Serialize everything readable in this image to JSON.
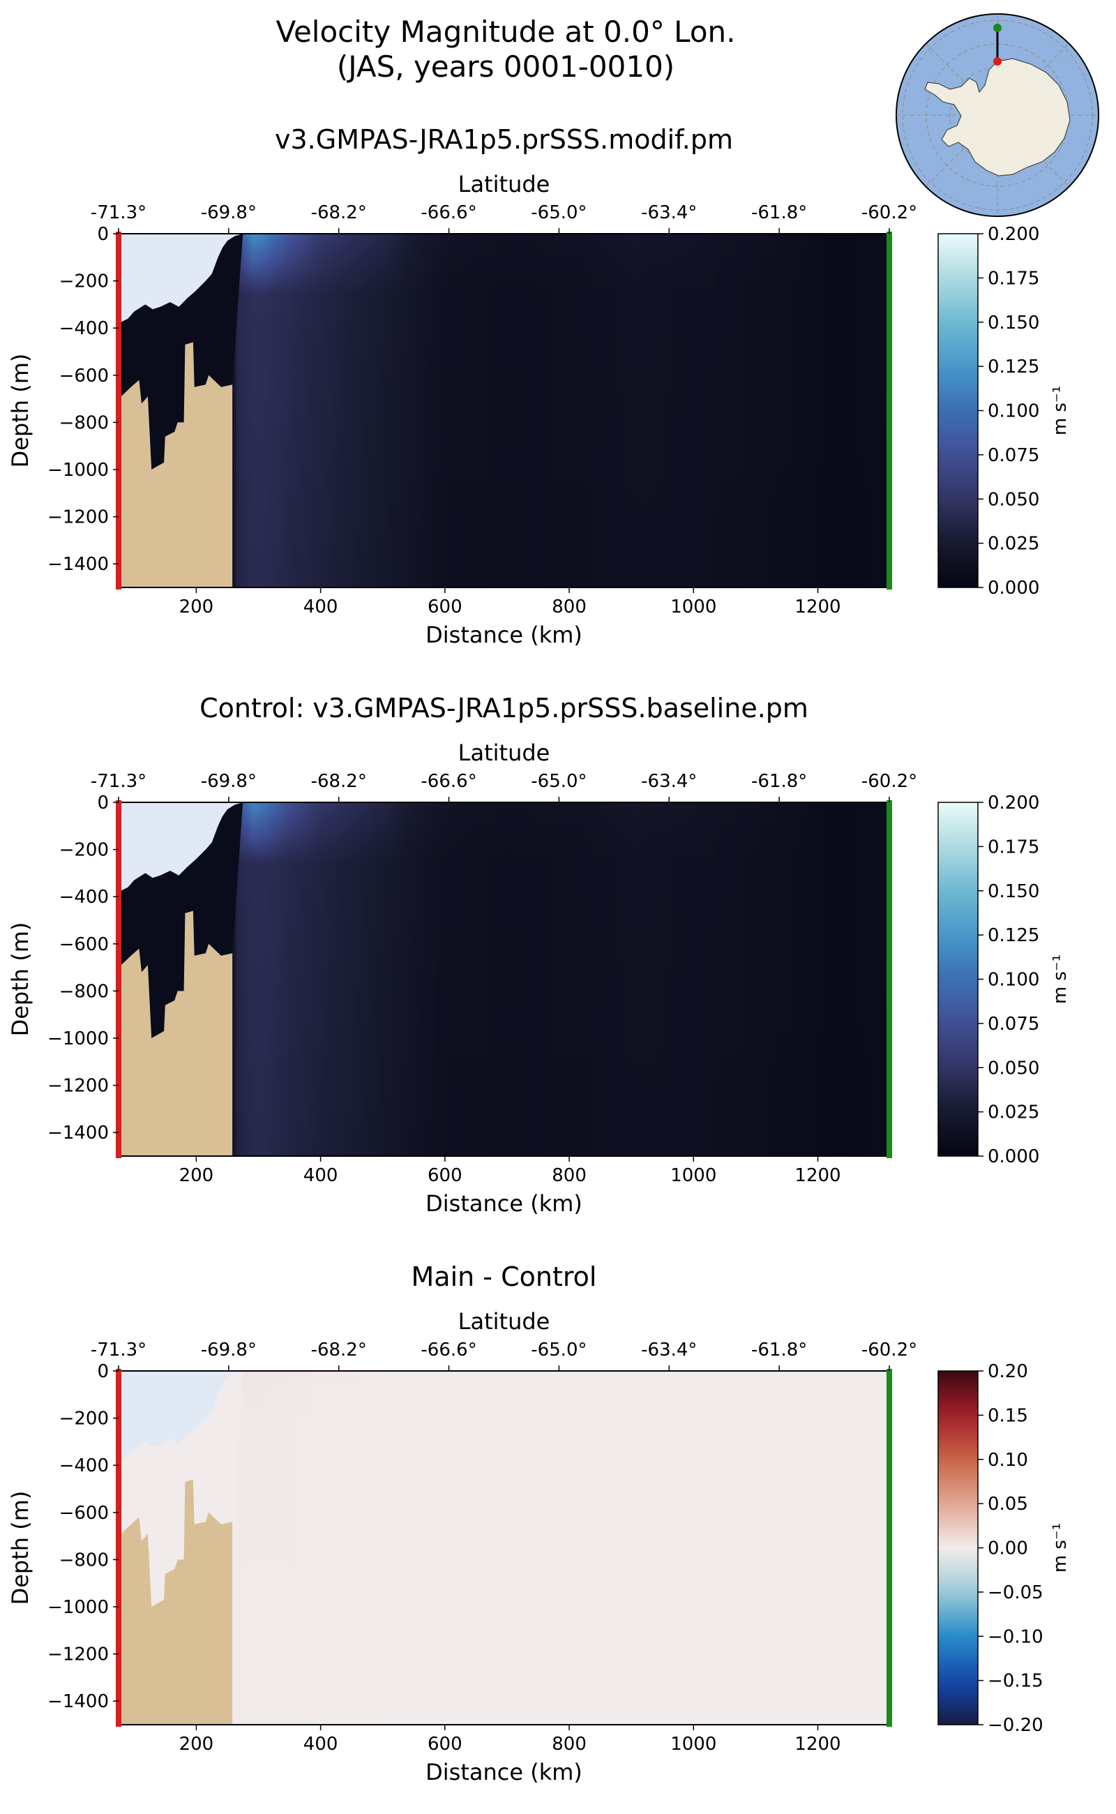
{
  "figure": {
    "title_line1": "Velocity Magnitude at 0.0° Lon.",
    "title_line2": "(JAS, years 0001-0010)"
  },
  "colors": {
    "land": "#d8bf96",
    "ice_shelf": "#e1e9f5",
    "start_marker": "#d42020",
    "end_marker": "#1a8a1a",
    "map_ocean": "#92b3df",
    "map_land": "#f0ede0"
  },
  "inset_map": {
    "description_icon": "polar-stereographic-map-icon",
    "transect_start": "red",
    "transect_end": "green"
  },
  "chart_data": [
    {
      "type": "heatmap",
      "title": "v3.GMPAS-JRA1p5.prSSS.modif.pm",
      "xlabel": "Distance (km)",
      "ylabel": "Depth (m)",
      "top_xlabel": "Latitude",
      "xlim": [
        75,
        1315
      ],
      "ylim": [
        -1500,
        0
      ],
      "x_ticks": [
        200,
        400,
        600,
        800,
        1000,
        1200
      ],
      "y_ticks": [
        0,
        -200,
        -400,
        -600,
        -800,
        -1000,
        -1200,
        -1400
      ],
      "y_tick_labels": [
        "0",
        "−200",
        "−400",
        "−600",
        "−800",
        "−1000",
        "−1200",
        "−1400"
      ],
      "lat_ticks": [
        "-71.3°",
        "-69.8°",
        "-68.2°",
        "-66.6°",
        "-65.0°",
        "-63.4°",
        "-61.8°",
        "-60.2°"
      ],
      "colormap": "ice",
      "colorbar": {
        "label": "m s⁻¹",
        "vmin": 0.0,
        "vmax": 0.2,
        "ticks": [
          "0.000",
          "0.025",
          "0.050",
          "0.075",
          "0.100",
          "0.125",
          "0.150",
          "0.175",
          "0.200"
        ]
      },
      "profile": {
        "distance_km": [
          75,
          258,
          265,
          290,
          310,
          350,
          400,
          450,
          500,
          550,
          600,
          700,
          800,
          900,
          1000,
          1100,
          1180,
          1230,
          1300,
          1315
        ],
        "surface_speed": [
          0.0,
          0.02,
          0.08,
          0.12,
          0.11,
          0.08,
          0.055,
          0.045,
          0.038,
          0.025,
          0.018,
          0.015,
          0.016,
          0.02,
          0.018,
          0.014,
          0.01,
          0.006,
          0.01,
          0.01
        ],
        "deep_speed": [
          0.0,
          0.02,
          0.04,
          0.045,
          0.045,
          0.04,
          0.035,
          0.03,
          0.025,
          0.02,
          0.014,
          0.012,
          0.013,
          0.016,
          0.015,
          0.012,
          0.009,
          0.006,
          0.009,
          0.009
        ],
        "surface_decay_depth_m": 260
      },
      "cavity_speed": 0.008
    },
    {
      "type": "heatmap",
      "title": "Control: v3.GMPAS-JRA1p5.prSSS.baseline.pm",
      "xlabel": "Distance (km)",
      "ylabel": "Depth (m)",
      "top_xlabel": "Latitude",
      "xlim": [
        75,
        1315
      ],
      "ylim": [
        -1500,
        0
      ],
      "x_ticks": [
        200,
        400,
        600,
        800,
        1000,
        1200
      ],
      "y_ticks": [
        0,
        -200,
        -400,
        -600,
        -800,
        -1000,
        -1200,
        -1400
      ],
      "y_tick_labels": [
        "0",
        "−200",
        "−400",
        "−600",
        "−800",
        "−1000",
        "−1200",
        "−1400"
      ],
      "lat_ticks": [
        "-71.3°",
        "-69.8°",
        "-68.2°",
        "-66.6°",
        "-65.0°",
        "-63.4°",
        "-61.8°",
        "-60.2°"
      ],
      "colormap": "ice",
      "colorbar": {
        "label": "m s⁻¹",
        "vmin": 0.0,
        "vmax": 0.2,
        "ticks": [
          "0.000",
          "0.025",
          "0.050",
          "0.075",
          "0.100",
          "0.125",
          "0.150",
          "0.175",
          "0.200"
        ]
      },
      "profile": {
        "distance_km": [
          75,
          258,
          265,
          290,
          310,
          350,
          400,
          450,
          500,
          550,
          600,
          700,
          800,
          900,
          1000,
          1100,
          1180,
          1230,
          1300,
          1315
        ],
        "surface_speed": [
          0.0,
          0.02,
          0.08,
          0.115,
          0.105,
          0.075,
          0.052,
          0.043,
          0.036,
          0.024,
          0.018,
          0.015,
          0.016,
          0.02,
          0.018,
          0.014,
          0.01,
          0.006,
          0.01,
          0.01
        ],
        "deep_speed": [
          0.0,
          0.02,
          0.038,
          0.043,
          0.043,
          0.038,
          0.033,
          0.029,
          0.024,
          0.019,
          0.014,
          0.012,
          0.013,
          0.016,
          0.015,
          0.012,
          0.009,
          0.006,
          0.009,
          0.009
        ],
        "surface_decay_depth_m": 260
      },
      "cavity_speed": 0.008
    },
    {
      "type": "heatmap",
      "title": "Main - Control",
      "xlabel": "Distance (km)",
      "ylabel": "Depth (m)",
      "top_xlabel": "Latitude",
      "xlim": [
        75,
        1315
      ],
      "ylim": [
        -1500,
        0
      ],
      "x_ticks": [
        200,
        400,
        600,
        800,
        1000,
        1200
      ],
      "y_ticks": [
        0,
        -200,
        -400,
        -600,
        -800,
        -1000,
        -1200,
        -1400
      ],
      "y_tick_labels": [
        "0",
        "−200",
        "−400",
        "−600",
        "−800",
        "−1000",
        "−1200",
        "−1400"
      ],
      "lat_ticks": [
        "-71.3°",
        "-69.8°",
        "-68.2°",
        "-66.6°",
        "-65.0°",
        "-63.4°",
        "-61.8°",
        "-60.2°"
      ],
      "colormap": "balance",
      "colorbar": {
        "label": "m s⁻¹",
        "vmin": -0.2,
        "vmax": 0.2,
        "ticks": [
          "−0.20",
          "−0.15",
          "−0.10",
          "−0.05",
          "0.00",
          "0.05",
          "0.10",
          "0.15",
          "0.20"
        ]
      },
      "profile": {
        "distance_km": [
          75,
          258,
          265,
          290,
          310,
          350,
          400,
          450,
          500,
          600,
          800,
          1000,
          1200,
          1315
        ],
        "surface_speed": [
          0.0,
          0.0,
          0.004,
          0.005,
          0.004,
          0.003,
          0.002,
          0.002,
          0.001,
          0.0,
          0.0,
          0.0,
          0.0,
          0.0
        ],
        "deep_speed": [
          0.0,
          0.0,
          0.002,
          0.002,
          0.002,
          0.002,
          0.001,
          0.001,
          0.0,
          0.0,
          0.0,
          0.0,
          0.0,
          0.0
        ],
        "surface_decay_depth_m": 260
      },
      "cavity_speed": 0.0
    }
  ],
  "geometry_km_m": {
    "bathymetry": [
      [
        75,
        -700
      ],
      [
        95,
        -650
      ],
      [
        108,
        -620
      ],
      [
        112,
        -720
      ],
      [
        122,
        -690
      ],
      [
        128,
        -1000
      ],
      [
        148,
        -970
      ],
      [
        150,
        -860
      ],
      [
        165,
        -840
      ],
      [
        170,
        -800
      ],
      [
        180,
        -800
      ],
      [
        182,
        -470
      ],
      [
        195,
        -460
      ],
      [
        197,
        -650
      ],
      [
        215,
        -640
      ],
      [
        220,
        -600
      ],
      [
        240,
        -650
      ],
      [
        258,
        -640
      ],
      [
        258,
        -1500
      ]
    ],
    "ice_draft": [
      [
        75,
        -380
      ],
      [
        90,
        -360
      ],
      [
        100,
        -330
      ],
      [
        118,
        -300
      ],
      [
        130,
        -320
      ],
      [
        142,
        -310
      ],
      [
        158,
        -290
      ],
      [
        172,
        -310
      ],
      [
        185,
        -275
      ],
      [
        200,
        -240
      ],
      [
        215,
        -200
      ],
      [
        225,
        -170
      ],
      [
        235,
        -100
      ],
      [
        242,
        -60
      ],
      [
        250,
        -30
      ],
      [
        262,
        -10
      ],
      [
        275,
        0
      ]
    ]
  }
}
